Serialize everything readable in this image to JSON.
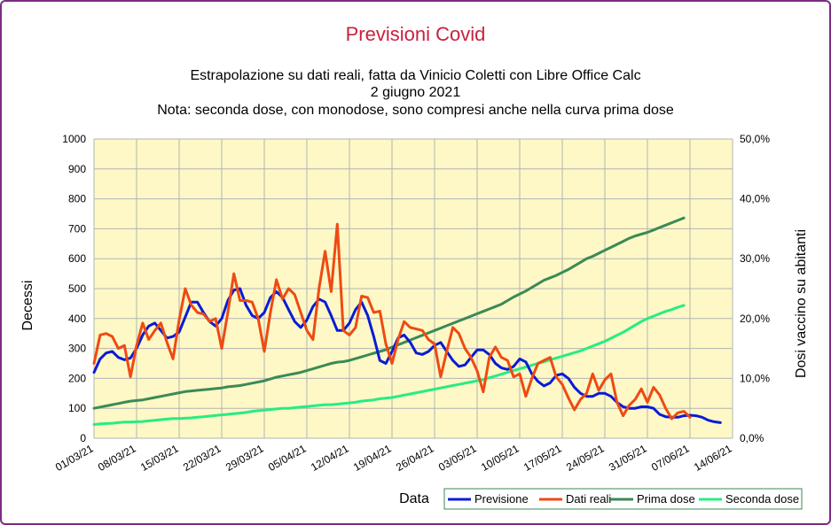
{
  "chart_data": {
    "type": "line",
    "title": "Previsioni Covid",
    "subtitle_lines": [
      "Estrapolazione su dati reali, fatta da Vinicio Coletti con Libre Office Calc",
      "2 giugno 2021",
      "Nota: seconda dose, con monodose, sono compresi anche nella curva prima dose"
    ],
    "xlabel": "Data",
    "ylabel": "Decessi",
    "y2label": "Dosi vaccino su abitanti",
    "ylim": [
      0,
      1000
    ],
    "y2lim": [
      0,
      50
    ],
    "y_ticks": [
      "0",
      "100",
      "200",
      "300",
      "400",
      "500",
      "600",
      "700",
      "800",
      "900",
      "1000"
    ],
    "y2_ticks": [
      "0,0%",
      "10,0%",
      "20,0%",
      "30,0%",
      "40,0%",
      "50,0%"
    ],
    "x_ticks": [
      "01/03/21",
      "08/03/21",
      "15/03/21",
      "22/03/21",
      "29/03/21",
      "05/04/21",
      "12/04/21",
      "19/04/21",
      "26/04/21",
      "03/05/21",
      "10/05/21",
      "17/05/21",
      "24/05/21",
      "31/05/21",
      "07/06/21",
      "14/06/21"
    ],
    "x_dates": [
      "2021-03-01",
      "2021-06-14"
    ],
    "grid": true,
    "legend_position": "bottom-right",
    "colors": {
      "plot_background": "#fdf8c5",
      "grid": "#b3b3b3",
      "frame": "#7b2c83",
      "title": "#c9213f"
    },
    "series": [
      {
        "name": "Previsione",
        "color": "#0a1bd6",
        "axis": "left",
        "x_start": "2021-03-01",
        "values": [
          220,
          265,
          285,
          290,
          270,
          262,
          268,
          300,
          345,
          375,
          385,
          360,
          335,
          340,
          355,
          405,
          455,
          455,
          420,
          390,
          375,
          400,
          460,
          495,
          500,
          445,
          410,
          400,
          420,
          470,
          490,
          470,
          430,
          390,
          370,
          395,
          440,
          465,
          455,
          410,
          360,
          360,
          385,
          430,
          455,
          410,
          340,
          260,
          250,
          290,
          335,
          345,
          320,
          285,
          280,
          290,
          310,
          320,
          290,
          260,
          240,
          245,
          270,
          295,
          295,
          280,
          250,
          235,
          230,
          240,
          265,
          255,
          215,
          190,
          175,
          185,
          210,
          215,
          200,
          170,
          150,
          140,
          140,
          150,
          150,
          140,
          120,
          105,
          100,
          100,
          105,
          105,
          100,
          80,
          72,
          70,
          70,
          75,
          77,
          75,
          70,
          60,
          55,
          52
        ]
      },
      {
        "name": "Dati reali",
        "color": "#ef4a13",
        "axis": "left",
        "x_start": "2021-03-01",
        "values": [
          250,
          345,
          350,
          340,
          300,
          310,
          205,
          310,
          385,
          330,
          360,
          385,
          320,
          265,
          395,
          500,
          445,
          420,
          415,
          390,
          400,
          300,
          420,
          550,
          460,
          460,
          455,
          400,
          290,
          420,
          530,
          465,
          500,
          480,
          420,
          360,
          330,
          500,
          625,
          490,
          715,
          360,
          345,
          370,
          475,
          470,
          420,
          425,
          315,
          250,
          330,
          390,
          370,
          365,
          360,
          330,
          315,
          205,
          290,
          370,
          350,
          300,
          270,
          225,
          155,
          270,
          305,
          270,
          260,
          205,
          215,
          140,
          200,
          250,
          260,
          270,
          205,
          180,
          135,
          95,
          130,
          150,
          215,
          160,
          195,
          215,
          120,
          75,
          110,
          130,
          165,
          120,
          170,
          145,
          100,
          65,
          85,
          90,
          70
        ],
        "x_end": "2021-06-04"
      },
      {
        "name": "Prima dose",
        "color": "#3a8a57",
        "axis": "right",
        "x_start": "2021-03-01",
        "values": [
          5.0,
          5.2,
          5.4,
          5.6,
          5.8,
          6.0,
          6.2,
          6.3,
          6.4,
          6.6,
          6.8,
          7.0,
          7.2,
          7.4,
          7.6,
          7.8,
          7.9,
          8.0,
          8.1,
          8.2,
          8.3,
          8.4,
          8.6,
          8.7,
          8.8,
          9.0,
          9.2,
          9.4,
          9.6,
          9.9,
          10.2,
          10.4,
          10.6,
          10.8,
          11.0,
          11.3,
          11.6,
          11.9,
          12.2,
          12.5,
          12.7,
          12.8,
          13.0,
          13.3,
          13.6,
          13.9,
          14.2,
          14.5,
          14.8,
          15.2,
          15.6,
          16.0,
          16.4,
          16.8,
          17.2,
          17.6,
          18.0,
          18.4,
          18.8,
          19.2,
          19.6,
          20.0,
          20.4,
          20.8,
          21.2,
          21.6,
          22.0,
          22.4,
          23.0,
          23.6,
          24.1,
          24.6,
          25.2,
          25.8,
          26.4,
          26.8,
          27.2,
          27.7,
          28.2,
          28.8,
          29.4,
          30.0,
          30.4,
          30.9,
          31.4,
          31.9,
          32.4,
          32.9,
          33.4,
          33.8,
          34.1,
          34.4,
          34.8,
          35.2,
          35.6,
          36.0,
          36.4,
          36.8
        ],
        "x_end": "2021-06-04"
      },
      {
        "name": "Seconda dose",
        "color": "#27ec83",
        "axis": "right",
        "x_start": "2021-03-01",
        "values": [
          2.3,
          2.4,
          2.45,
          2.5,
          2.6,
          2.7,
          2.7,
          2.75,
          2.8,
          2.9,
          3.0,
          3.1,
          3.2,
          3.3,
          3.3,
          3.35,
          3.4,
          3.5,
          3.6,
          3.7,
          3.8,
          3.9,
          4.0,
          4.1,
          4.2,
          4.3,
          4.5,
          4.6,
          4.7,
          4.8,
          4.9,
          5.0,
          5.0,
          5.1,
          5.2,
          5.3,
          5.4,
          5.5,
          5.6,
          5.6,
          5.7,
          5.8,
          5.9,
          6.0,
          6.2,
          6.3,
          6.4,
          6.6,
          6.7,
          6.8,
          7.0,
          7.2,
          7.4,
          7.6,
          7.8,
          8.0,
          8.2,
          8.4,
          8.6,
          8.8,
          9.0,
          9.2,
          9.4,
          9.6,
          9.8,
          10.1,
          10.4,
          10.7,
          11.0,
          11.3,
          11.6,
          11.9,
          12.2,
          12.5,
          12.8,
          13.1,
          13.4,
          13.7,
          14.0,
          14.3,
          14.6,
          15.0,
          15.4,
          15.8,
          16.2,
          16.7,
          17.2,
          17.7,
          18.3,
          18.9,
          19.5,
          20.0,
          20.4,
          20.8,
          21.2,
          21.5,
          21.9,
          22.2
        ],
        "x_end": "2021-06-04"
      }
    ]
  }
}
